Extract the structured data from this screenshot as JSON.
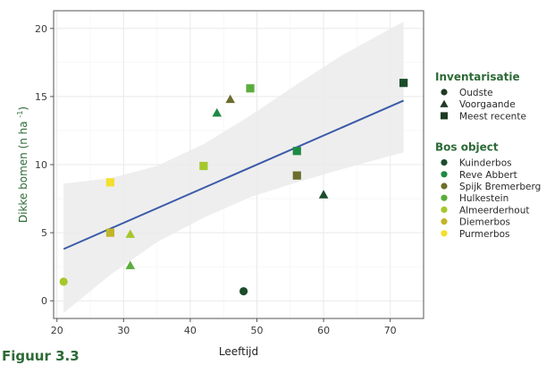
{
  "caption": "Figuur 3.3",
  "chart_data": {
    "type": "scatter",
    "title": "",
    "xlabel": "Leeftijd",
    "ylabel": "Dikke bomen (n ha",
    "ylabel_sup": "-1",
    "ylabel_tail": ")",
    "xlim": [
      19.5,
      75
    ],
    "ylim": [
      -1.3,
      21.3
    ],
    "x_ticks": [
      20,
      30,
      40,
      50,
      60,
      70
    ],
    "y_ticks": [
      0,
      5,
      10,
      15,
      20
    ],
    "grid": true,
    "legend_position": "right",
    "colors": {
      "panel_border": "#555555",
      "grid": "#e9e9e9",
      "axis_text": "#3a3a3a",
      "ylabel": "#2d6a37",
      "regression_line": "#3a5ba9",
      "ribbon": "#ebebeb",
      "legend_title": "#2d6a37"
    },
    "legends": [
      {
        "title": "Inventarisatie",
        "entries": [
          {
            "label": "Oudste",
            "shape": "circle",
            "color": "#1e3a23"
          },
          {
            "label": "Voorgaande",
            "shape": "triangle",
            "color": "#1e3a23"
          },
          {
            "label": "Meest recente",
            "shape": "square",
            "color": "#1e3a23"
          }
        ]
      },
      {
        "title": "Bos object",
        "entries": [
          {
            "label": "Kuinderbos",
            "shape": "circle",
            "color": "#1b4d2b"
          },
          {
            "label": "Reve Abbert",
            "shape": "circle",
            "color": "#1e8a43"
          },
          {
            "label": "Spijk Bremerberg",
            "shape": "circle",
            "color": "#6b6e2c"
          },
          {
            "label": "Hulkestein",
            "shape": "circle",
            "color": "#5aad3c"
          },
          {
            "label": "Almeerderhout",
            "shape": "circle",
            "color": "#a5c72c"
          },
          {
            "label": "Diemerbos",
            "shape": "circle",
            "color": "#c2b52a"
          },
          {
            "label": "Purmerbos",
            "shape": "circle",
            "color": "#f3df2e"
          }
        ]
      }
    ],
    "points": [
      {
        "x": 21,
        "y": 1.4,
        "object": "Almeerderhout",
        "inventarisatie": "Oudste"
      },
      {
        "x": 48,
        "y": 0.7,
        "object": "Kuinderbos",
        "inventarisatie": "Oudste"
      },
      {
        "x": 28,
        "y": 8.7,
        "object": "Purmerbos",
        "inventarisatie": "Meest recente"
      },
      {
        "x": 28,
        "y": 5.0,
        "object": "Diemerbos",
        "inventarisatie": "Meest recente"
      },
      {
        "x": 31,
        "y": 4.9,
        "object": "Almeerderhout",
        "inventarisatie": "Voorgaande"
      },
      {
        "x": 31,
        "y": 2.6,
        "object": "Hulkestein",
        "inventarisatie": "Voorgaande"
      },
      {
        "x": 42,
        "y": 9.9,
        "object": "Almeerderhout",
        "inventarisatie": "Meest recente"
      },
      {
        "x": 44,
        "y": 13.8,
        "object": "Reve Abbert",
        "inventarisatie": "Voorgaande"
      },
      {
        "x": 46,
        "y": 14.8,
        "object": "Spijk Bremerberg",
        "inventarisatie": "Voorgaande"
      },
      {
        "x": 49,
        "y": 15.6,
        "object": "Hulkestein",
        "inventarisatie": "Meest recente"
      },
      {
        "x": 56,
        "y": 11.0,
        "object": "Reve Abbert",
        "inventarisatie": "Meest recente"
      },
      {
        "x": 56,
        "y": 9.2,
        "object": "Spijk Bremerberg",
        "inventarisatie": "Meest recente"
      },
      {
        "x": 60,
        "y": 7.8,
        "object": "Kuinderbos",
        "inventarisatie": "Voorgaande"
      },
      {
        "x": 72,
        "y": 16.0,
        "object": "Kuinderbos",
        "inventarisatie": "Meest recente"
      }
    ],
    "regression": {
      "x": [
        21,
        72
      ],
      "y": [
        3.8,
        14.7
      ]
    },
    "confidence_band": [
      {
        "x": 21,
        "lo": -0.9,
        "hi": 8.6
      },
      {
        "x": 28,
        "lo": 1.9,
        "hi": 9.0
      },
      {
        "x": 35,
        "lo": 4.3,
        "hi": 9.9
      },
      {
        "x": 42,
        "lo": 6.1,
        "hi": 11.5
      },
      {
        "x": 49,
        "lo": 7.6,
        "hi": 13.6
      },
      {
        "x": 56,
        "lo": 8.7,
        "hi": 15.9
      },
      {
        "x": 63,
        "lo": 9.7,
        "hi": 18.1
      },
      {
        "x": 72,
        "lo": 10.9,
        "hi": 20.5
      }
    ]
  }
}
